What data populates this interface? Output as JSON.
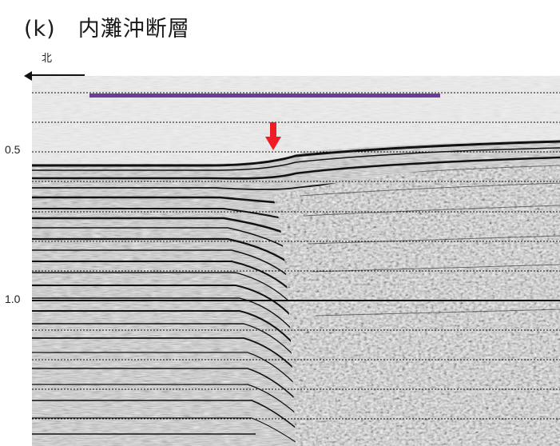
{
  "title": "(k)　内灘沖断層",
  "direction_label": "北",
  "y_axis": {
    "tick_labels": [
      {
        "label": "0.5",
        "value": 0.5
      },
      {
        "label": "1.0",
        "value": 1.0
      }
    ]
  },
  "colors": {
    "purple_bar": "#6a3d9a",
    "red_arrow": "#ee1c25",
    "black_arrow": "#111111"
  },
  "markers": {
    "purple_bar": "purple-horizontal-bar",
    "fault_arrow": "red-down-arrow",
    "north_arrow": "black-left-arrow"
  }
}
